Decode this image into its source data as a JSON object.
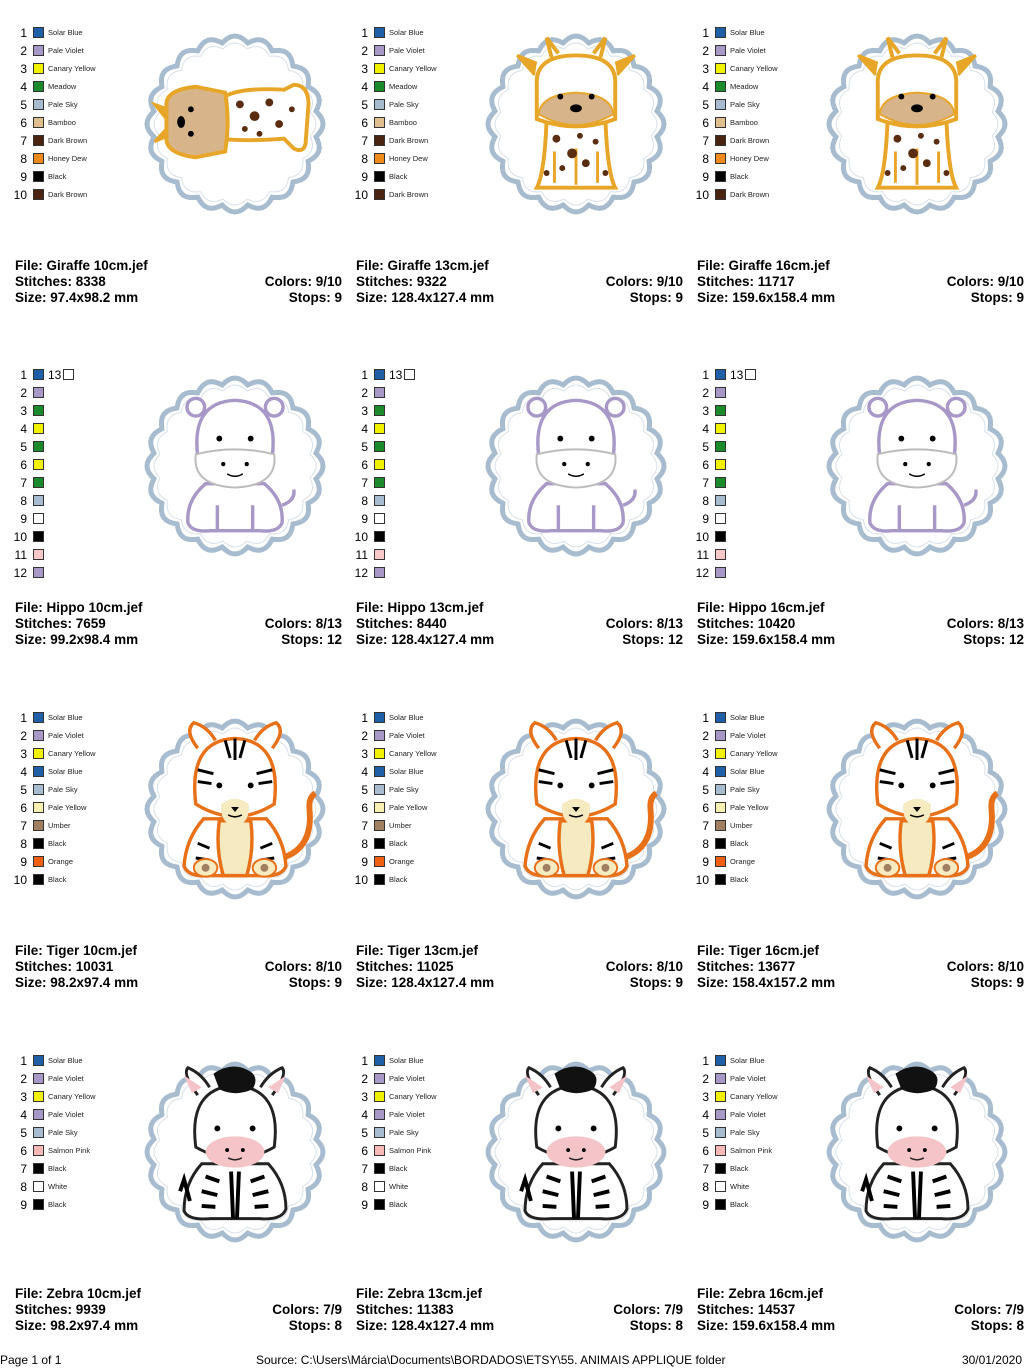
{
  "palettes": {
    "giraffe": [
      {
        "n": "1",
        "name": "Solar Blue",
        "color": "#1f5fa8"
      },
      {
        "n": "2",
        "name": "Pale Violet",
        "color": "#a898c8"
      },
      {
        "n": "3",
        "name": "Canary Yellow",
        "color": "#f2f200"
      },
      {
        "n": "4",
        "name": "Meadow",
        "color": "#1a8a2a"
      },
      {
        "n": "5",
        "name": "Pale Sky",
        "color": "#a8bcd0"
      },
      {
        "n": "6",
        "name": "Bamboo",
        "color": "#e0bf8e"
      },
      {
        "n": "7",
        "name": "Dark Brown",
        "color": "#4a2410"
      },
      {
        "n": "8",
        "name": "Honey Dew",
        "color": "#f08a1a"
      },
      {
        "n": "9",
        "name": "Black",
        "color": "#000000"
      },
      {
        "n": "10",
        "name": "Dark Brown",
        "color": "#4a2410"
      }
    ],
    "hippo": [
      {
        "n": "1",
        "name": "",
        "color": "#1f5fa8"
      },
      {
        "n": "2",
        "name": "",
        "color": "#a898c8"
      },
      {
        "n": "3",
        "name": "",
        "color": "#1a8a2a"
      },
      {
        "n": "4",
        "name": "",
        "color": "#f2f200"
      },
      {
        "n": "5",
        "name": "",
        "color": "#1a8a2a"
      },
      {
        "n": "6",
        "name": "",
        "color": "#f2f200"
      },
      {
        "n": "7",
        "name": "",
        "color": "#1a8a2a"
      },
      {
        "n": "8",
        "name": "",
        "color": "#a8bcd0"
      },
      {
        "n": "9",
        "name": "",
        "color": "#ffffff"
      },
      {
        "n": "10",
        "name": "",
        "color": "#000000"
      },
      {
        "n": "11",
        "name": "",
        "color": "#f8c8c8"
      },
      {
        "n": "12",
        "name": "",
        "color": "#a898c8"
      }
    ],
    "hippo_extra": "13",
    "tiger": [
      {
        "n": "1",
        "name": "Solar Blue",
        "color": "#1f5fa8"
      },
      {
        "n": "2",
        "name": "Pale Violet",
        "color": "#a898c8"
      },
      {
        "n": "3",
        "name": "Canary Yellow",
        "color": "#f2f200"
      },
      {
        "n": "4",
        "name": "Solar Blue",
        "color": "#1f5fa8"
      },
      {
        "n": "5",
        "name": "Pale Sky",
        "color": "#a8bcd0"
      },
      {
        "n": "6",
        "name": "Pale Yellow",
        "color": "#f8f0b0"
      },
      {
        "n": "7",
        "name": "Umber",
        "color": "#a08060"
      },
      {
        "n": "8",
        "name": "Black",
        "color": "#000000"
      },
      {
        "n": "9",
        "name": "Orange",
        "color": "#f06010"
      },
      {
        "n": "10",
        "name": "Black",
        "color": "#000000"
      }
    ],
    "zebra": [
      {
        "n": "1",
        "name": "Solar Blue",
        "color": "#1f5fa8"
      },
      {
        "n": "2",
        "name": "Pale Violet",
        "color": "#a898c8"
      },
      {
        "n": "3",
        "name": "Canary Yellow",
        "color": "#f2f200"
      },
      {
        "n": "4",
        "name": "Pale Violet",
        "color": "#a898c8"
      },
      {
        "n": "5",
        "name": "Pale Sky",
        "color": "#a8bcd0"
      },
      {
        "n": "6",
        "name": "Salmon Pink",
        "color": "#f8b8b8"
      },
      {
        "n": "7",
        "name": "Black",
        "color": "#000000"
      },
      {
        "n": "8",
        "name": "White",
        "color": "#ffffff"
      },
      {
        "n": "9",
        "name": "Black",
        "color": "#000000"
      }
    ]
  },
  "designs": [
    {
      "animal": "giraffe",
      "variant": "giraffe-side",
      "file": "File: Giraffe 10cm.jef",
      "stitches": "Stitches: 8338",
      "size": "Size: 97.4x98.2 mm",
      "colors": "Colors: 9/10",
      "stops": "Stops: 9"
    },
    {
      "animal": "giraffe",
      "variant": "giraffe",
      "file": "File: Giraffe 13cm.jef",
      "stitches": "Stitches: 9322",
      "size": "Size: 128.4x127.4 mm",
      "colors": "Colors: 9/10",
      "stops": "Stops: 9"
    },
    {
      "animal": "giraffe",
      "variant": "giraffe",
      "file": "File: Giraffe 16cm.jef",
      "stitches": "Stitches: 11717",
      "size": "Size: 159.6x158.4 mm",
      "colors": "Colors: 9/10",
      "stops": "Stops: 9"
    },
    {
      "animal": "hippo",
      "variant": "hippo",
      "file": "File: Hippo 10cm.jef",
      "stitches": "Stitches: 7659",
      "size": "Size: 99.2x98.4 mm",
      "colors": "Colors: 8/13",
      "stops": "Stops: 12"
    },
    {
      "animal": "hippo",
      "variant": "hippo",
      "file": "File: Hippo 13cm.jef",
      "stitches": "Stitches: 8440",
      "size": "Size: 128.4x127.4 mm",
      "colors": "Colors: 8/13",
      "stops": "Stops: 12"
    },
    {
      "animal": "hippo",
      "variant": "hippo",
      "file": "File: Hippo 16cm.jef",
      "stitches": "Stitches: 10420",
      "size": "Size: 159.6x158.4 mm",
      "colors": "Colors: 8/13",
      "stops": "Stops: 12"
    },
    {
      "animal": "tiger",
      "variant": "tiger",
      "file": "File: Tiger 10cm.jef",
      "stitches": "Stitches: 10031",
      "size": "Size: 98.2x97.4 mm",
      "colors": "Colors: 8/10",
      "stops": "Stops: 9"
    },
    {
      "animal": "tiger",
      "variant": "tiger",
      "file": "File: Tiger 13cm.jef",
      "stitches": "Stitches: 11025",
      "size": "Size: 128.4x127.4 mm",
      "colors": "Colors: 8/10",
      "stops": "Stops: 9"
    },
    {
      "animal": "tiger",
      "variant": "tiger",
      "file": "File: Tiger 16cm.jef",
      "stitches": "Stitches: 13677",
      "size": "Size: 158.4x157.2 mm",
      "colors": "Colors: 8/10",
      "stops": "Stops: 9"
    },
    {
      "animal": "zebra",
      "variant": "zebra",
      "file": "File: Zebra 10cm.jef",
      "stitches": "Stitches: 9939",
      "size": "Size: 98.2x97.4 mm",
      "colors": "Colors: 7/9",
      "stops": "Stops: 8"
    },
    {
      "animal": "zebra",
      "variant": "zebra",
      "file": "File: Zebra 13cm.jef",
      "stitches": "Stitches: 11383",
      "size": "Size: 128.4x127.4 mm",
      "colors": "Colors: 7/9",
      "stops": "Stops: 8"
    },
    {
      "animal": "zebra",
      "variant": "zebra",
      "file": "File: Zebra 16cm.jef",
      "stitches": "Stitches: 14537",
      "size": "Size: 159.6x158.4 mm",
      "colors": "Colors: 7/9",
      "stops": "Stops: 8"
    }
  ],
  "footer": {
    "page": "Page 1 of 1",
    "source": "Source: C:\\Users\\Márcia\\Documents\\BORDADOS\\ETSY\\55. ANIMAIS APPLIQUE folder",
    "date": "30/01/2020"
  },
  "colors": {
    "frame_outer": "#a8bcd0",
    "frame_inner": "#ffffff",
    "giraffe": "#e8a628",
    "giraffe_face": "#d8b48a",
    "giraffe_spot": "#5a2c10",
    "hippo": "#a898c8",
    "tiger": "#e87018",
    "tiger_belly": "#f5eac0",
    "zebra_pink": "#f4c4c8"
  },
  "icons": {
    "frame": "scalloped-frame-icon",
    "giraffe": "giraffe-icon",
    "hippo": "hippo-icon",
    "tiger": "tiger-icon",
    "zebra": "zebra-icon"
  }
}
